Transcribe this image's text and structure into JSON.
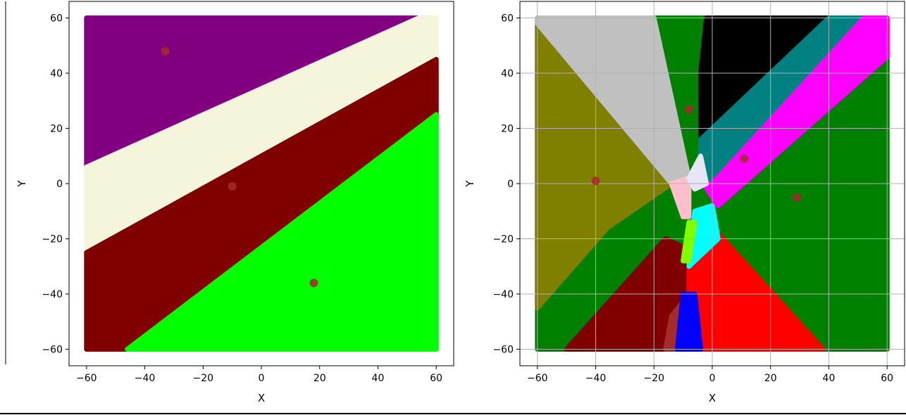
{
  "figure": {
    "background": "#ffffff",
    "frame_color": "#000000",
    "grid_color": "#b0b0b0",
    "center_marker_color": "#a52a2a"
  },
  "chart_data": [
    {
      "type": "scatter",
      "xlabel": "X",
      "ylabel": "Y",
      "xlim": [
        -66,
        66
      ],
      "ylim": [
        -66,
        66
      ],
      "xticks": [
        -60,
        -40,
        -20,
        0,
        20,
        40,
        60
      ],
      "yticks": [
        -60,
        -40,
        -20,
        0,
        20,
        40,
        60
      ],
      "grid": false,
      "sample_range": [
        -60,
        60
      ],
      "regions": [
        {
          "color": "#800080",
          "polygon": [
            [
              -60,
              6
            ],
            [
              54,
              60
            ],
            [
              -60,
              60
            ]
          ]
        },
        {
          "color": "#f5f5dc",
          "polygon": [
            [
              -60,
              -25
            ],
            [
              60,
              45
            ],
            [
              60,
              60
            ],
            [
              54,
              60
            ],
            [
              -60,
              6
            ]
          ]
        },
        {
          "color": "#800000",
          "polygon": [
            [
              -60,
              -60
            ],
            [
              -46,
              -60
            ],
            [
              60,
              25
            ],
            [
              60,
              45
            ],
            [
              -60,
              -25
            ]
          ]
        },
        {
          "color": "#00ff00",
          "polygon": [
            [
              -46,
              -60
            ],
            [
              60,
              -60
            ],
            [
              60,
              25
            ]
          ]
        }
      ],
      "centers": [
        {
          "x": -33,
          "y": 48
        },
        {
          "x": -10,
          "y": -1
        },
        {
          "x": 18,
          "y": -36
        }
      ],
      "labels": {
        "xlabel": "X",
        "ylabel": "Y",
        "xticks": [
          "−60",
          "−40",
          "−20",
          "0",
          "20",
          "40",
          "60"
        ],
        "yticks": [
          "−60",
          "−40",
          "−20",
          "0",
          "20",
          "40",
          "60"
        ]
      }
    },
    {
      "type": "scatter",
      "xlabel": "X",
      "ylabel": "Y",
      "xlim": [
        -66,
        66
      ],
      "ylim": [
        -66,
        66
      ],
      "xticks": [
        -60,
        -40,
        -20,
        0,
        20,
        40,
        60
      ],
      "yticks": [
        -60,
        -40,
        -20,
        0,
        20,
        40,
        60
      ],
      "grid": true,
      "sample_range": [
        -60,
        60
      ],
      "regions": [
        {
          "color": "#008000",
          "polygon": [
            [
              -60,
              -60
            ],
            [
              60,
              -60
            ],
            [
              60,
              60
            ],
            [
              -60,
              60
            ]
          ]
        },
        {
          "color": "#808000",
          "polygon": [
            [
              -60,
              58
            ],
            [
              -14,
              0
            ],
            [
              -36,
              -16
            ],
            [
              -60,
              -45
            ]
          ]
        },
        {
          "color": "#c0c0c0",
          "polygon": [
            [
              -60,
              60
            ],
            [
              -20,
              60
            ],
            [
              -8,
              2
            ],
            [
              -14,
              0
            ],
            [
              -60,
              58
            ]
          ]
        },
        {
          "color": "#000000",
          "polygon": [
            [
              -2,
              60
            ],
            [
              40,
              60
            ],
            [
              -4,
              16
            ],
            [
              -4,
              40
            ]
          ]
        },
        {
          "color": "#008080",
          "polygon": [
            [
              40,
              60
            ],
            [
              52,
              60
            ],
            [
              0,
              0
            ],
            [
              -4,
              10
            ],
            [
              -4,
              16
            ]
          ]
        },
        {
          "color": "#ff00ff",
          "polygon": [
            [
              52,
              60
            ],
            [
              60,
              60
            ],
            [
              60,
              46
            ],
            [
              2,
              -8
            ],
            [
              -3,
              0
            ],
            [
              0,
              0
            ]
          ]
        },
        {
          "color": "#800000",
          "polygon": [
            [
              -50,
              -60
            ],
            [
              -12,
              -60
            ],
            [
              -8,
              -24
            ],
            [
              -16,
              -20
            ]
          ]
        },
        {
          "color": "#a52a2a",
          "polygon": [
            [
              -16,
              -60
            ],
            [
              -10,
              -60
            ],
            [
              -8,
              -40
            ],
            [
              -14,
              -48
            ]
          ]
        },
        {
          "color": "#ff0000",
          "polygon": [
            [
              -8,
              -60
            ],
            [
              38,
              -60
            ],
            [
              2,
              -18
            ],
            [
              -8,
              -30
            ]
          ]
        },
        {
          "color": "#0000ff",
          "polygon": [
            [
              -12,
              -60
            ],
            [
              -4,
              -60
            ],
            [
              -6,
              -40
            ],
            [
              -10,
              -40
            ]
          ]
        },
        {
          "color": "#00ffff",
          "polygon": [
            [
              -8,
              -30
            ],
            [
              -6,
              -10
            ],
            [
              0,
              -8
            ],
            [
              2,
              -20
            ]
          ]
        },
        {
          "color": "#80ff00",
          "polygon": [
            [
              -10,
              -28
            ],
            [
              -8,
              -14
            ],
            [
              -6,
              -14
            ],
            [
              -8,
              -28
            ]
          ]
        },
        {
          "color": "#ffc0cb",
          "polygon": [
            [
              -14,
              0
            ],
            [
              -8,
              2
            ],
            [
              -8,
              -12
            ],
            [
              -10,
              -12
            ]
          ]
        },
        {
          "color": "#e6e6fa",
          "polygon": [
            [
              -8,
              2
            ],
            [
              -4,
              10
            ],
            [
              -2,
              0
            ],
            [
              -6,
              -2
            ]
          ]
        }
      ],
      "centers": [
        {
          "x": -8,
          "y": 27
        },
        {
          "x": -40,
          "y": 1
        },
        {
          "x": 11,
          "y": 9
        },
        {
          "x": 29,
          "y": -5
        }
      ],
      "labels": {
        "xlabel": "X",
        "ylabel": "Y",
        "xticks": [
          "−60",
          "−40",
          "−20",
          "0",
          "20",
          "40",
          "60"
        ],
        "yticks": [
          "−60",
          "−40",
          "−20",
          "0",
          "20",
          "40",
          "60"
        ]
      }
    }
  ]
}
